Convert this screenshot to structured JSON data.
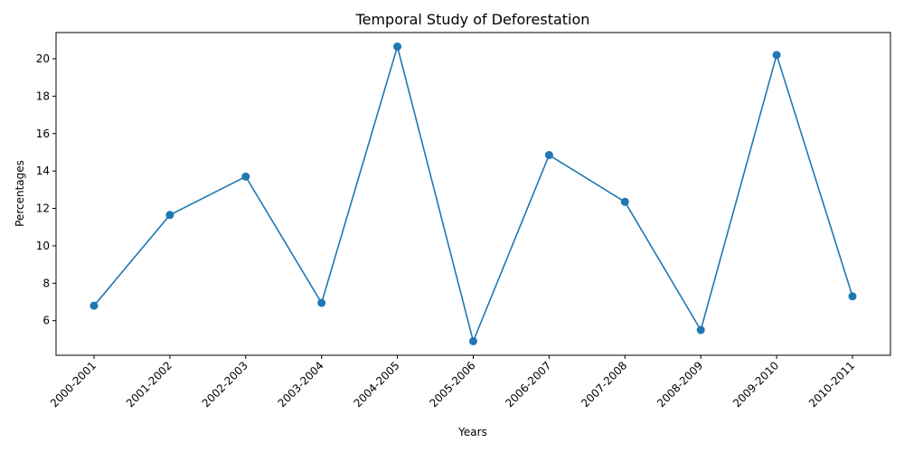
{
  "chart_data": {
    "type": "line",
    "title": "Temporal Study of Deforestation",
    "xlabel": "Years",
    "ylabel": "Percentages",
    "categories": [
      "2000-2001",
      "2001-2002",
      "2002-2003",
      "2003-2004",
      "2004-2005",
      "2005-2006",
      "2006-2007",
      "2007-2008",
      "2008-2009",
      "2009-2010",
      "2010-2011"
    ],
    "values": [
      6.8,
      11.65,
      13.7,
      6.95,
      20.65,
      4.9,
      14.85,
      12.35,
      5.5,
      20.2,
      7.3
    ],
    "ylim": [
      4.15,
      21.4
    ],
    "yticks": [
      6,
      8,
      10,
      12,
      14,
      16,
      18,
      20
    ],
    "grid": false,
    "line_color": "#1f77b4",
    "marker": "circle"
  }
}
